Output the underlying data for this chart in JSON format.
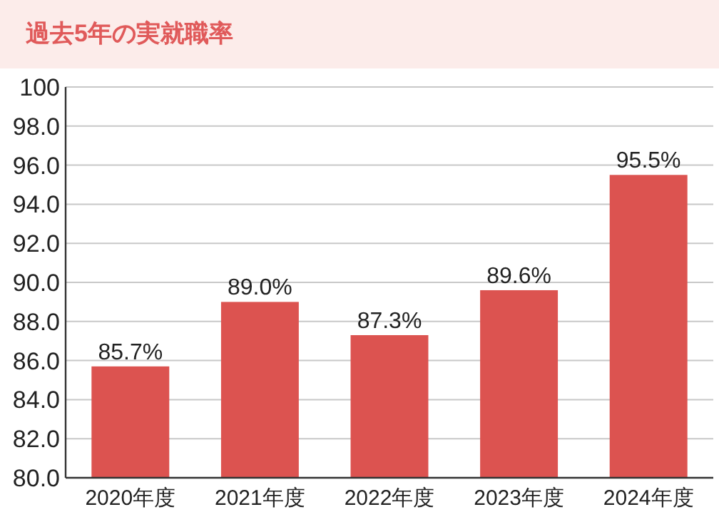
{
  "chart_data": {
    "type": "bar",
    "title": "過去5年の実就職率",
    "categories": [
      "2020年度",
      "2021年度",
      "2022年度",
      "2023年度",
      "2024年度"
    ],
    "values": [
      85.7,
      89.0,
      87.3,
      89.6,
      95.5
    ],
    "value_labels": [
      "85.7%",
      "89.0%",
      "87.3%",
      "89.6%",
      "95.5%"
    ],
    "color": "#dc5350",
    "ylim": [
      80,
      100
    ],
    "yticks": [
      {
        "value": 80,
        "label": "80.0"
      },
      {
        "value": 82,
        "label": "82.0"
      },
      {
        "value": 84,
        "label": "84.0"
      },
      {
        "value": 86,
        "label": "86.0"
      },
      {
        "value": 88,
        "label": "88.0"
      },
      {
        "value": 90,
        "label": "90.0"
      },
      {
        "value": 92,
        "label": "92.0"
      },
      {
        "value": 94,
        "label": "94.0"
      },
      {
        "value": 96,
        "label": "96.0"
      },
      {
        "value": 98,
        "label": "98.0"
      },
      100
    ],
    "grid": "y"
  }
}
